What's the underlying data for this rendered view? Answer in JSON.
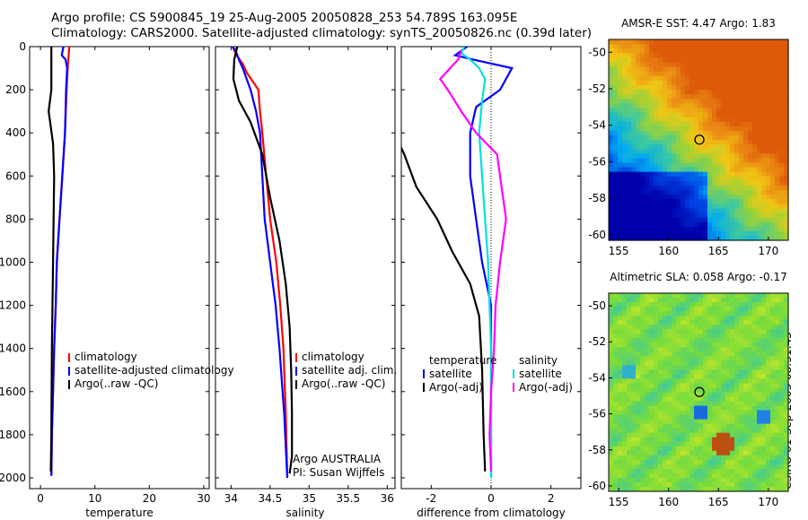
{
  "header": {
    "line1": "Argo profile: CS 5900845_19 25-Aug-2005 20050828_253 54.789S 163.095E",
    "line2": "Climatology: CARS2000. Satellite-adjusted climatology: synTS_20050826.nc (0.39d later)"
  },
  "stamp": "CSIRO 01-Sep-2005 08:31:43",
  "colors": {
    "climatology": "#ff0000",
    "satellite": "#0000ff",
    "argo": "#000000",
    "argo_salinity_diff": "#ff00ff",
    "satellite_salinity_diff": "#00e0e0"
  },
  "chart_data": [
    {
      "type": "line",
      "xlabel": "temperature",
      "ylabel": "",
      "xlim": [
        -2,
        31
      ],
      "ylim": [
        2050,
        0
      ],
      "xticks": [
        "0",
        "10",
        "20",
        "30"
      ],
      "yticks": [
        "0",
        "200",
        "400",
        "600",
        "800",
        "1000",
        "1200",
        "1400",
        "1600",
        "1800",
        "2000"
      ],
      "legend": [
        "climatology",
        "satellite-adjusted climatology",
        "Argo(..raw -QC)"
      ],
      "series": [
        {
          "name": "climatology",
          "color": "#ff0000",
          "points": [
            [
              5.3,
              0
            ],
            [
              5.0,
              100
            ],
            [
              4.8,
              200
            ],
            [
              4.5,
              400
            ],
            [
              4.0,
              600
            ],
            [
              3.5,
              800
            ],
            [
              3.0,
              1000
            ],
            [
              2.8,
              1200
            ],
            [
              2.5,
              1400
            ],
            [
              2.3,
              1600
            ],
            [
              2.1,
              1800
            ],
            [
              2.0,
              1990
            ]
          ]
        },
        {
          "name": "satellite-adjusted climatology",
          "color": "#0000ff",
          "points": [
            [
              4.2,
              0
            ],
            [
              3.9,
              40
            ],
            [
              4.6,
              60
            ],
            [
              4.9,
              100
            ],
            [
              4.7,
              200
            ],
            [
              4.5,
              400
            ],
            [
              4.0,
              600
            ],
            [
              3.5,
              800
            ],
            [
              3.0,
              1000
            ],
            [
              2.8,
              1200
            ],
            [
              2.5,
              1400
            ],
            [
              2.3,
              1600
            ],
            [
              2.1,
              1800
            ],
            [
              2.0,
              1990
            ]
          ]
        },
        {
          "name": "Argo(..raw -QC)",
          "color": "#000000",
          "points": [
            [
              2.0,
              0
            ],
            [
              2.0,
              200
            ],
            [
              1.5,
              300
            ],
            [
              2.3,
              450
            ],
            [
              2.5,
              600
            ],
            [
              2.3,
              1000
            ],
            [
              2.1,
              1400
            ],
            [
              2.0,
              1800
            ],
            [
              1.9,
              1970
            ]
          ]
        }
      ]
    },
    {
      "type": "line",
      "xlabel": "salinity",
      "xlim": [
        33.8,
        36.1
      ],
      "ylim": [
        2050,
        0
      ],
      "xticks": [
        "34",
        "34.5",
        "35",
        "35.5",
        "36"
      ],
      "legend": [
        "climatology",
        "satellite adj. clim.",
        "Argo(..raw -QC)"
      ],
      "annotations": [
        "Argo AUSTRALIA",
        "PI: Susan Wijffels"
      ],
      "series": [
        {
          "name": "climatology",
          "color": "#ff0000",
          "points": [
            [
              34.02,
              0
            ],
            [
              34.07,
              40
            ],
            [
              34.15,
              80
            ],
            [
              34.2,
              120
            ],
            [
              34.35,
              200
            ],
            [
              34.37,
              300
            ],
            [
              34.4,
              400
            ],
            [
              34.45,
              600
            ],
            [
              34.5,
              800
            ],
            [
              34.58,
              1000
            ],
            [
              34.63,
              1200
            ],
            [
              34.67,
              1400
            ],
            [
              34.7,
              1700
            ],
            [
              34.72,
              2000
            ]
          ]
        },
        {
          "name": "satellite adj. clim.",
          "color": "#0000ff",
          "points": [
            [
              34.02,
              0
            ],
            [
              34.06,
              20
            ],
            [
              34.1,
              60
            ],
            [
              34.15,
              100
            ],
            [
              34.25,
              200
            ],
            [
              34.32,
              300
            ],
            [
              34.37,
              400
            ],
            [
              34.4,
              600
            ],
            [
              34.43,
              800
            ],
            [
              34.5,
              1000
            ],
            [
              34.57,
              1200
            ],
            [
              34.62,
              1400
            ],
            [
              34.68,
              1700
            ],
            [
              34.72,
              2000
            ]
          ]
        },
        {
          "name": "Argo(..raw -QC)",
          "color": "#000000",
          "points": [
            [
              34.08,
              0
            ],
            [
              34.04,
              60
            ],
            [
              34.03,
              150
            ],
            [
              34.1,
              250
            ],
            [
              34.25,
              350
            ],
            [
              34.4,
              500
            ],
            [
              34.5,
              700
            ],
            [
              34.62,
              900
            ],
            [
              34.7,
              1100
            ],
            [
              34.75,
              1300
            ],
            [
              34.77,
              1500
            ],
            [
              34.78,
              1700
            ],
            [
              34.78,
              1900
            ],
            [
              34.75,
              1980
            ]
          ]
        }
      ]
    },
    {
      "type": "line",
      "xlabel": "difference from climatology",
      "xlim": [
        -3,
        3
      ],
      "ylim": [
        2050,
        0
      ],
      "xticks": [
        "-2",
        "0",
        "2"
      ],
      "legend": [
        "temperature",
        "satellite",
        "Argo(-adj)",
        "salinity",
        "satellite",
        "Argo(-adj)"
      ],
      "series": [
        {
          "name": "temperature satellite",
          "color": "#0000ff",
          "points": [
            [
              -0.8,
              0
            ],
            [
              -1.2,
              40
            ],
            [
              -0.6,
              60
            ],
            [
              0.7,
              100
            ],
            [
              0.3,
              200
            ],
            [
              -0.5,
              280
            ],
            [
              -0.7,
              400
            ],
            [
              -0.7,
              600
            ],
            [
              -0.5,
              800
            ],
            [
              -0.3,
              1000
            ],
            [
              -0.15,
              1100
            ],
            [
              0,
              1200
            ],
            [
              0,
              2000
            ]
          ]
        },
        {
          "name": "temperature Argo(-adj)",
          "color": "#000000",
          "points": [
            [
              -3.3,
              380
            ],
            [
              -2.9,
              500
            ],
            [
              -2.5,
              650
            ],
            [
              -1.8,
              800
            ],
            [
              -1.3,
              950
            ],
            [
              -0.7,
              1100
            ],
            [
              -0.4,
              1250
            ],
            [
              -0.3,
              1500
            ],
            [
              -0.25,
              1800
            ],
            [
              -0.2,
              1970
            ]
          ]
        },
        {
          "name": "salinity satellite",
          "color": "#00e0e0",
          "points": [
            [
              -0.9,
              0
            ],
            [
              -1.0,
              30
            ],
            [
              -0.7,
              60
            ],
            [
              -0.4,
              100
            ],
            [
              -0.2,
              150
            ],
            [
              -0.3,
              250
            ],
            [
              -0.4,
              400
            ],
            [
              -0.3,
              600
            ],
            [
              -0.2,
              800
            ],
            [
              -0.1,
              1000
            ],
            [
              -0.05,
              1200
            ],
            [
              0,
              1400
            ],
            [
              0,
              2000
            ]
          ]
        },
        {
          "name": "salinity Argo(-adj)",
          "color": "#ff00ff",
          "points": [
            [
              -1.0,
              20
            ],
            [
              -1.1,
              60
            ],
            [
              -1.7,
              150
            ],
            [
              -1.4,
              210
            ],
            [
              -1.0,
              300
            ],
            [
              -0.5,
              400
            ],
            [
              0.2,
              500
            ],
            [
              0.4,
              700
            ],
            [
              0.5,
              800
            ],
            [
              0.3,
              1000
            ],
            [
              0.15,
              1200
            ],
            [
              0.1,
              1400
            ],
            [
              0.0,
              1600
            ],
            [
              -0.05,
              1800
            ],
            [
              0,
              1970
            ]
          ]
        }
      ]
    },
    {
      "type": "heatmap",
      "title": "AMSR-E SST: 4.47 Argo: 1.83",
      "xlim": [
        154,
        172
      ],
      "ylim": [
        -60.3,
        -49.3
      ],
      "xticks": [
        "155",
        "160",
        "165",
        "170"
      ],
      "yticks": [
        "-50",
        "-52",
        "-54",
        "-56",
        "-58",
        "-60"
      ],
      "marker": [
        163.095,
        -54.789
      ]
    },
    {
      "type": "heatmap",
      "title": "Altimetric SLA: 0.058 Argo: -0.17",
      "xlim": [
        154,
        172
      ],
      "ylim": [
        -60.3,
        -49.3
      ],
      "xticks": [
        "155",
        "160",
        "165",
        "170"
      ],
      "yticks": [
        "-50",
        "-52",
        "-54",
        "-56",
        "-58",
        "-60"
      ],
      "marker": [
        163.095,
        -54.789
      ]
    }
  ]
}
